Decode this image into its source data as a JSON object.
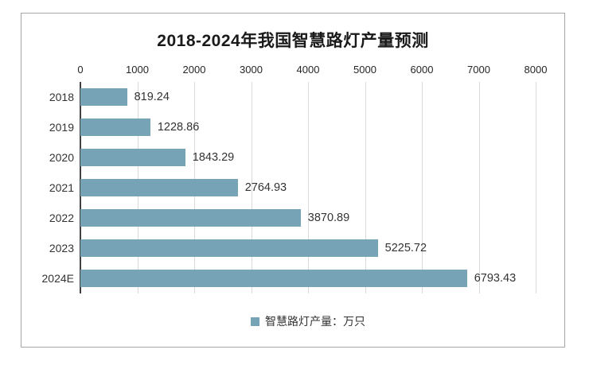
{
  "chart_data": {
    "type": "bar",
    "orientation": "horizontal",
    "title": "2018-2024年我国智慧路灯产量预测",
    "categories": [
      "2018",
      "2019",
      "2020",
      "2021",
      "2022",
      "2023",
      "2024E"
    ],
    "values": [
      819.24,
      1228.86,
      1843.29,
      2764.93,
      3870.89,
      5225.72,
      6793.43
    ],
    "value_labels": [
      "819.24",
      "1228.86",
      "1843.29",
      "2764.93",
      "3870.89",
      "5225.72",
      "6793.43"
    ],
    "legend": "智慧路灯产量：万只",
    "legend_position": "bottom",
    "xlim": [
      0,
      8000
    ],
    "x_ticks": [
      0,
      1000,
      2000,
      3000,
      4000,
      5000,
      6000,
      7000,
      8000
    ],
    "axis_position": "top",
    "grid": true,
    "colors": {
      "bar": "#76a3b5",
      "gridline": "#d9d9d9",
      "axis_line": "#404040",
      "frame_border": "#a6a6a6",
      "title_text": "#1a1a1a",
      "label_text": "#333333"
    }
  }
}
